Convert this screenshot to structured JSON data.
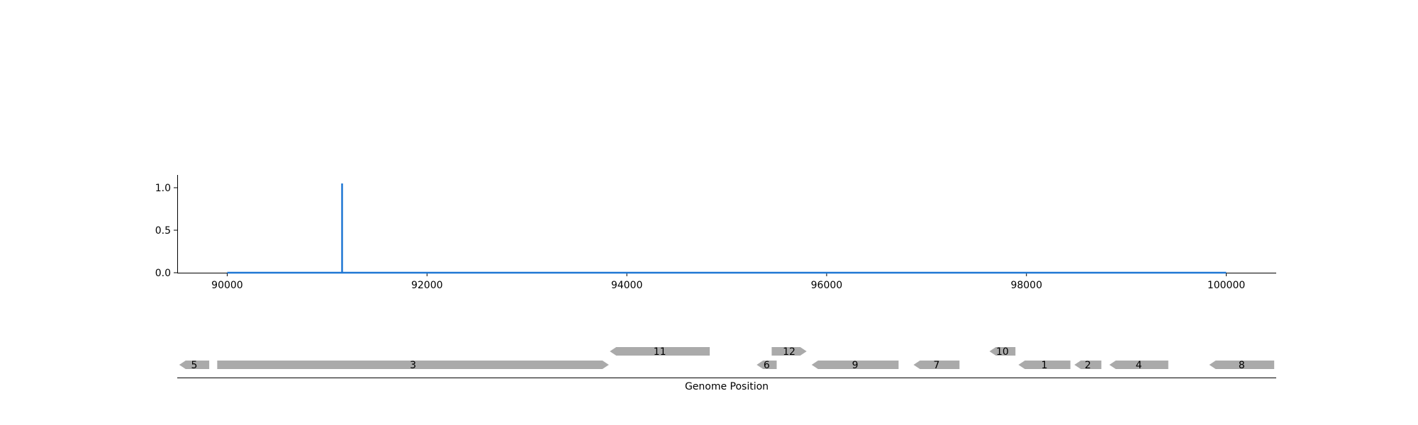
{
  "chart_data": [
    {
      "type": "line",
      "title": "",
      "xlabel": "",
      "ylabel": "",
      "xlim": [
        89500,
        100500
      ],
      "ylim": [
        0.0,
        1.15
      ],
      "xticks": [
        90000,
        92000,
        94000,
        96000,
        98000,
        100000
      ],
      "xtick_labels": [
        "90000",
        "92000",
        "94000",
        "96000",
        "98000",
        "100000"
      ],
      "yticks": [
        0.0,
        0.5,
        1.0
      ],
      "ytick_labels": [
        "0.0",
        "0.5",
        "1.0"
      ],
      "series": [
        {
          "color": "#1f77d4",
          "x": [
            90000,
            91150,
            91150,
            91150,
            100000
          ],
          "y": [
            0,
            0,
            1.05,
            0,
            0
          ]
        }
      ],
      "grid": false
    },
    {
      "type": "gene-track",
      "xlabel": "Genome Position",
      "xlim": [
        89500,
        100500
      ],
      "genes": [
        {
          "label": "5",
          "start": 89520,
          "end": 89820,
          "strand": "-",
          "row": 0
        },
        {
          "label": "3",
          "start": 89900,
          "end": 93820,
          "strand": "+",
          "row": 0
        },
        {
          "label": "11",
          "start": 93830,
          "end": 94830,
          "strand": "-",
          "row": 1
        },
        {
          "label": "6",
          "start": 95300,
          "end": 95500,
          "strand": "-",
          "row": 0
        },
        {
          "label": "12",
          "start": 95450,
          "end": 95800,
          "strand": "+",
          "row": 1
        },
        {
          "label": "9",
          "start": 95850,
          "end": 96720,
          "strand": "-",
          "row": 0
        },
        {
          "label": "7",
          "start": 96870,
          "end": 97330,
          "strand": "-",
          "row": 0
        },
        {
          "label": "10",
          "start": 97630,
          "end": 97890,
          "strand": "-",
          "row": 1
        },
        {
          "label": "1",
          "start": 97920,
          "end": 98440,
          "strand": "-",
          "row": 0
        },
        {
          "label": "2",
          "start": 98480,
          "end": 98750,
          "strand": "-",
          "row": 0
        },
        {
          "label": "4",
          "start": 98830,
          "end": 99420,
          "strand": "-",
          "row": 0
        },
        {
          "label": "8",
          "start": 99830,
          "end": 100480,
          "strand": "-",
          "row": 0
        }
      ],
      "gene_color": "#aaaaaa"
    }
  ]
}
